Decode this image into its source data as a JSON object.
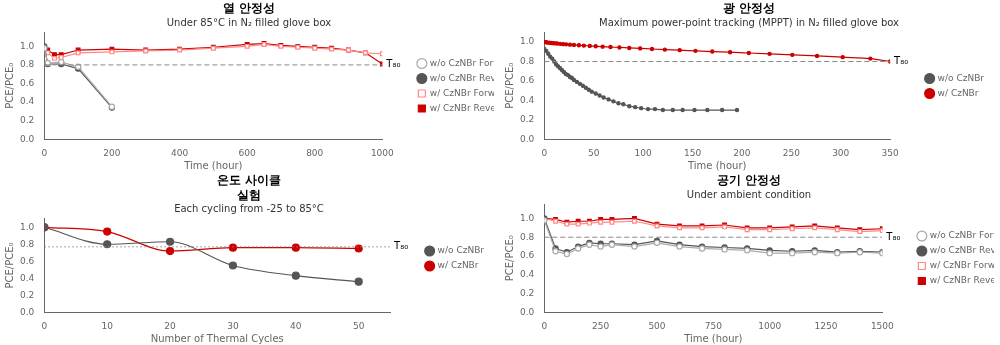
{
  "chart_data": [
    {
      "type": "line",
      "title": "열 안정성",
      "subtitle": "Under 85°C in N₂ filled glove box",
      "x_label": "Time (hour)",
      "y_label": "PCE/PCE₀",
      "series": [
        {
          "name": "w/o CzNBr Forward",
          "color": "#aaaaaa",
          "marker": "hollow_circle",
          "line_style": "solid",
          "x": [
            0,
            10,
            50,
            100,
            200
          ],
          "values": [
            0.98,
            0.82,
            0.83,
            0.78,
            0.35
          ]
        },
        {
          "name": "w/o CzNBr Reverse",
          "color": "#555555",
          "marker": "circle",
          "line_style": "solid",
          "x": [
            0,
            10,
            50,
            100,
            200
          ],
          "values": [
            1.0,
            0.81,
            0.81,
            0.76,
            0.34
          ]
        },
        {
          "name": "w/ CzNBr Forward",
          "color": "#ff8888",
          "marker": "hollow_square",
          "line_style": "solid",
          "x": [
            0,
            10,
            30,
            50,
            100,
            200,
            300,
            400,
            500,
            600,
            650,
            700,
            750,
            800,
            850,
            900,
            950,
            1000
          ],
          "values": [
            0.99,
            0.93,
            0.87,
            0.88,
            0.93,
            0.94,
            0.95,
            0.96,
            0.98,
            1.0,
            1.02,
            1.0,
            0.99,
            0.98,
            0.97,
            0.96,
            0.93,
            0.92
          ]
        },
        {
          "name": "w/ CzNBr Reverse",
          "color": "#cc0000",
          "marker": "square",
          "line_style": "solid",
          "x": [
            0,
            10,
            30,
            50,
            100,
            200,
            300,
            400,
            500,
            600,
            650,
            700,
            750,
            800,
            850,
            900,
            950,
            1000
          ],
          "values": [
            0.99,
            0.96,
            0.91,
            0.91,
            0.96,
            0.97,
            0.96,
            0.97,
            0.99,
            1.02,
            1.03,
            1.01,
            1.0,
            0.99,
            0.98,
            0.96,
            0.93,
            0.81
          ]
        }
      ],
      "annotations": [
        {
          "text": "T₈₀",
          "y": 0.8,
          "color": "#888888",
          "line_style": "dashed"
        }
      ],
      "xlim": [
        0,
        1000
      ],
      "xticks": [
        0,
        200,
        400,
        600,
        800,
        1000
      ],
      "ylim": [
        0,
        1.15
      ],
      "yticks": [
        {
          "value": 0.0,
          "label": "0.0"
        },
        0.2,
        0.4,
        0.6,
        0.8,
        {
          "value": 1.0,
          "label": "1.0"
        }
      ],
      "grid": false,
      "legend": "right"
    },
    {
      "type": "line",
      "title": "광 안정성",
      "subtitle": "Maximum power-point tracking (MPPT) in N₂ filled glove box",
      "x_label": "Time (hour)",
      "y_label": "PCE/PCE₀",
      "series": [
        {
          "name": "w/o CzNBr",
          "color": "#555555",
          "marker": "dot",
          "line_style": "smooth",
          "x": [
            0,
            2,
            4,
            6,
            8,
            10,
            12,
            14,
            16,
            18,
            20,
            22,
            24,
            26,
            28,
            30,
            33,
            36,
            39,
            42,
            45,
            48,
            52,
            56,
            60,
            65,
            70,
            75,
            80,
            86,
            92,
            98,
            105,
            112,
            120,
            130,
            140,
            152,
            165,
            180,
            195
          ],
          "values": [
            0.93,
            0.91,
            0.88,
            0.85,
            0.83,
            0.8,
            0.77,
            0.75,
            0.73,
            0.71,
            0.69,
            0.67,
            0.66,
            0.64,
            0.63,
            0.61,
            0.59,
            0.57,
            0.55,
            0.53,
            0.51,
            0.49,
            0.47,
            0.45,
            0.43,
            0.41,
            0.39,
            0.37,
            0.36,
            0.34,
            0.33,
            0.32,
            0.31,
            0.31,
            0.3,
            0.3,
            0.3,
            0.3,
            0.3,
            0.3,
            0.3
          ]
        },
        {
          "name": "w/ CzNBr",
          "color": "#cc0000",
          "marker": "dot",
          "line_style": "smooth",
          "x": [
            0,
            1,
            2,
            3,
            5,
            7,
            9,
            11,
            13,
            16,
            19,
            22,
            26,
            30,
            35,
            40,
            46,
            52,
            59,
            67,
            76,
            86,
            97,
            109,
            122,
            137,
            153,
            170,
            188,
            207,
            228,
            251,
            276,
            302,
            330,
            350
          ],
          "values": [
            1.0,
            1.0,
            1.0,
            0.995,
            0.993,
            0.991,
            0.989,
            0.987,
            0.985,
            0.982,
            0.979,
            0.977,
            0.974,
            0.971,
            0.968,
            0.964,
            0.961,
            0.957,
            0.953,
            0.949,
            0.945,
            0.94,
            0.935,
            0.929,
            0.923,
            0.917,
            0.91,
            0.903,
            0.896,
            0.888,
            0.879,
            0.869,
            0.858,
            0.845,
            0.83,
            0.8
          ]
        }
      ],
      "annotations": [
        {
          "text": "T₈₀",
          "y": 0.8,
          "color": "#888888",
          "line_style": "dashed"
        }
      ],
      "xlim": [
        0,
        350
      ],
      "xticks": [
        0,
        50,
        100,
        150,
        200,
        250,
        300,
        350
      ],
      "ylim": [
        0,
        1.1
      ],
      "yticks": [
        {
          "value": 0.0,
          "label": "0.0"
        },
        0.2,
        0.4,
        0.6,
        0.8,
        {
          "value": 1.0,
          "label": "1.0"
        }
      ],
      "grid": false,
      "legend": "right"
    },
    {
      "type": "line",
      "title": "온도 사이클\n실험",
      "subtitle": "Each cycling from -25 to 85°C",
      "x_label": "Number of Thermal Cycles",
      "y_label": "PCE/PCE₀",
      "series": [
        {
          "name": "w/o CzNBr",
          "color": "#555555",
          "marker": "circle",
          "line_style": "smooth",
          "x": [
            0,
            10,
            20,
            30,
            40,
            50
          ],
          "values": [
            1.0,
            0.8,
            0.83,
            0.55,
            0.43,
            0.36
          ]
        },
        {
          "name": "w/ CzNBr",
          "color": "#cc0000",
          "marker": "circle",
          "line_style": "smooth",
          "x": [
            0,
            10,
            20,
            30,
            40,
            50
          ],
          "values": [
            1.0,
            0.95,
            0.72,
            0.76,
            0.76,
            0.75
          ]
        }
      ],
      "annotations": [
        {
          "text": "T₈₀",
          "y": 0.77,
          "color": "#888888",
          "line_style": "dotted"
        }
      ],
      "xlim": [
        0,
        55
      ],
      "xticks": [
        0,
        10,
        20,
        30,
        40,
        50
      ],
      "ylim": [
        0,
        1.1
      ],
      "yticks": [
        {
          "value": 0.0,
          "label": "0.0"
        },
        0.2,
        0.4,
        0.6,
        0.8,
        {
          "value": 1.0,
          "label": "1.0"
        }
      ],
      "grid": false,
      "legend": "right"
    },
    {
      "type": "line",
      "title": "공기 안정성",
      "subtitle": "Under ambient condition",
      "x_label": "Time (hour)",
      "y_label": "PCE/PCE₀",
      "series": [
        {
          "name": "w/o CzNBr Forward",
          "color": "#aaaaaa",
          "marker": "hollow_circle",
          "line_style": "solid",
          "x": [
            0,
            50,
            100,
            150,
            200,
            250,
            300,
            400,
            500,
            600,
            700,
            800,
            900,
            1000,
            1100,
            1200,
            1300,
            1400,
            1500
          ],
          "values": [
            0.98,
            0.65,
            0.62,
            0.68,
            0.72,
            0.7,
            0.72,
            0.7,
            0.74,
            0.7,
            0.68,
            0.67,
            0.66,
            0.63,
            0.63,
            0.64,
            0.63,
            0.64,
            0.63
          ]
        },
        {
          "name": "w/o CzNBr Reverse",
          "color": "#555555",
          "marker": "circle",
          "line_style": "solid",
          "x": [
            0,
            50,
            100,
            150,
            200,
            250,
            300,
            400,
            500,
            600,
            700,
            800,
            900,
            1000,
            1100,
            1200,
            1300,
            1400,
            1500
          ],
          "values": [
            1.0,
            0.68,
            0.64,
            0.7,
            0.74,
            0.73,
            0.73,
            0.72,
            0.76,
            0.72,
            0.7,
            0.69,
            0.68,
            0.66,
            0.65,
            0.66,
            0.64,
            0.65,
            0.64
          ]
        },
        {
          "name": "w/ CzNBr Forward",
          "color": "#ff8888",
          "marker": "hollow_square",
          "line_style": "solid",
          "x": [
            0,
            50,
            100,
            150,
            200,
            250,
            300,
            400,
            500,
            600,
            700,
            800,
            900,
            1000,
            1100,
            1200,
            1300,
            1400,
            1500
          ],
          "values": [
            1.0,
            0.97,
            0.94,
            0.94,
            0.95,
            0.96,
            0.96,
            0.97,
            0.92,
            0.9,
            0.9,
            0.91,
            0.88,
            0.88,
            0.89,
            0.9,
            0.88,
            0.86,
            0.87
          ]
        },
        {
          "name": "w/ CzNBr Reverse",
          "color": "#cc0000",
          "marker": "square",
          "line_style": "solid",
          "x": [
            0,
            50,
            100,
            150,
            200,
            250,
            300,
            400,
            500,
            600,
            700,
            800,
            900,
            1000,
            1100,
            1200,
            1300,
            1400,
            1500
          ],
          "values": [
            1.0,
            0.99,
            0.96,
            0.97,
            0.97,
            0.99,
            0.99,
            1.0,
            0.94,
            0.92,
            0.92,
            0.93,
            0.9,
            0.9,
            0.91,
            0.92,
            0.9,
            0.88,
            0.89
          ]
        }
      ],
      "annotations": [
        {
          "text": "T₈₀",
          "y": 0.8,
          "color": "#888888",
          "line_style": "dashed"
        }
      ],
      "xlim": [
        0,
        1500
      ],
      "xticks": [
        0,
        250,
        500,
        750,
        1000,
        1250,
        1500
      ],
      "ylim": [
        0,
        1.15
      ],
      "yticks": [
        {
          "value": 0.0,
          "label": "0.0"
        },
        0.2,
        0.4,
        0.6,
        0.8,
        {
          "value": 1.0,
          "label": "1.0"
        }
      ],
      "grid": false,
      "legend": "right"
    }
  ]
}
